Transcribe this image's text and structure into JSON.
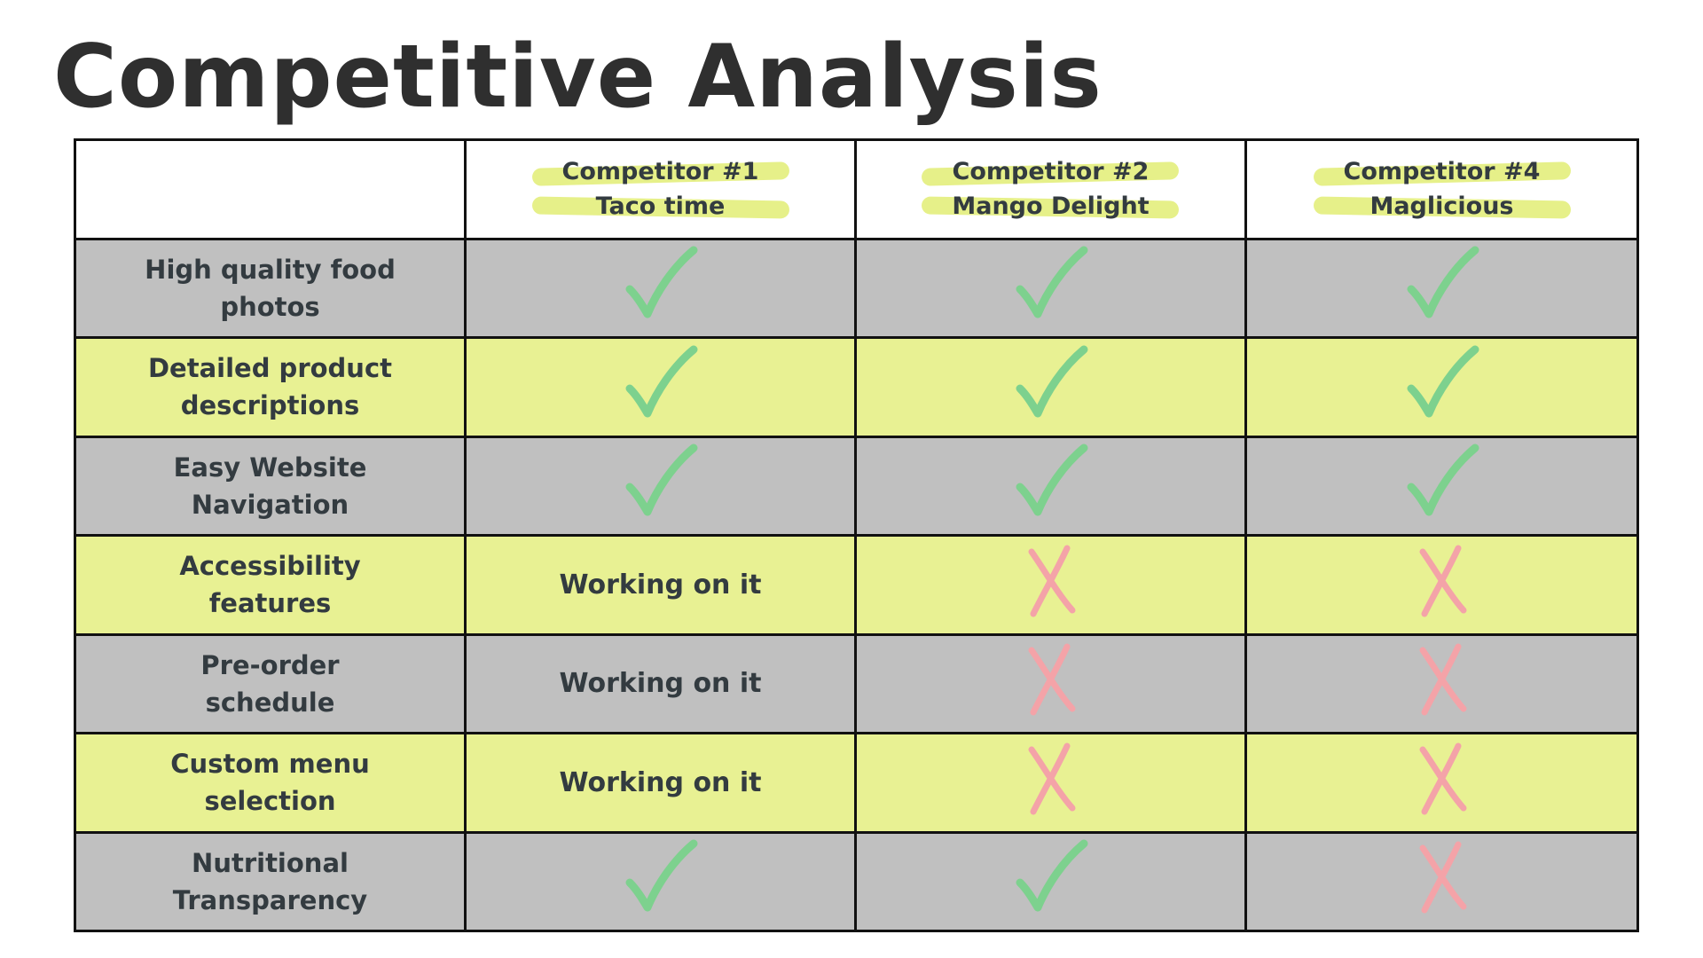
{
  "title": "Competitive Analysis",
  "colors": {
    "gray_row": "#c0c0c0",
    "yellow_row": "#e8f193",
    "check": "#7dd18e",
    "cross": "#f4a3a8",
    "highlight": "#e3ee7c"
  },
  "header": {
    "blank": "",
    "competitors": [
      {
        "line1": "Competitor #1",
        "line2": "Taco time"
      },
      {
        "line1": "Competitor #2",
        "line2": "Mango Delight"
      },
      {
        "line1": "Competitor #4",
        "line2": "Maglicious"
      }
    ]
  },
  "rows": [
    {
      "feature_line1": "High quality food",
      "feature_line2": "photos",
      "cells": [
        "check",
        "check",
        "check"
      ]
    },
    {
      "feature_line1": "Detailed product",
      "feature_line2": "descriptions",
      "cells": [
        "check",
        "check",
        "check"
      ]
    },
    {
      "feature_line1": "Easy Website",
      "feature_line2": "Navigation",
      "cells": [
        "check",
        "check",
        "check"
      ]
    },
    {
      "feature_line1": "Accessibility",
      "feature_line2": "features",
      "cells": [
        "Working on it",
        "cross",
        "cross"
      ]
    },
    {
      "feature_line1": "Pre-order",
      "feature_line2": "schedule",
      "cells": [
        "Working on it",
        "cross",
        "cross"
      ]
    },
    {
      "feature_line1": "Custom menu",
      "feature_line2": "selection",
      "cells": [
        "Working on it",
        "cross",
        "cross"
      ]
    },
    {
      "feature_line1": "Nutritional",
      "feature_line2": "Transparency",
      "cells": [
        "check",
        "check",
        "cross"
      ]
    }
  ]
}
